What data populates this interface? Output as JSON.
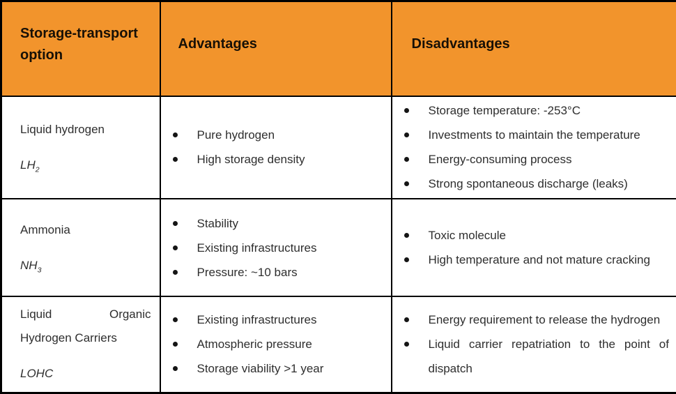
{
  "colors": {
    "header_bg": "#F2942C",
    "border": "#000000",
    "header_text": "#171006",
    "body_text": "#2E2E2E"
  },
  "table": {
    "headers": {
      "option": "Storage-transport option",
      "advantages": "Advantages",
      "disadvantages": "Disadvantages"
    },
    "rows": [
      {
        "option_name": "Liquid hydrogen",
        "formula_base": "LH",
        "formula_sub": "2",
        "advantages": [
          "Pure hydrogen",
          "High storage density"
        ],
        "disadvantages": [
          "Storage temperature: -253°C",
          "Investments to maintain the temperature",
          "Energy-consuming process",
          "Strong spontaneous discharge (leaks)"
        ]
      },
      {
        "option_name": "Ammonia",
        "formula_base": "NH",
        "formula_sub": "3",
        "advantages": [
          "Stability",
          "Existing infrastructures",
          "Pressure: ~10 bars"
        ],
        "disadvantages": [
          "Toxic molecule",
          "High temperature and not mature cracking"
        ]
      },
      {
        "option_name": "Liquid Organic Hydrogen Carriers",
        "formula_base": "LOHC",
        "formula_sub": "",
        "advantages": [
          "Existing infrastructures",
          "Atmospheric pressure",
          "Storage viability >1 year"
        ],
        "disadvantages": [
          "Energy requirement to release the hydrogen",
          "Liquid carrier repatriation to the point of dispatch"
        ]
      }
    ]
  }
}
